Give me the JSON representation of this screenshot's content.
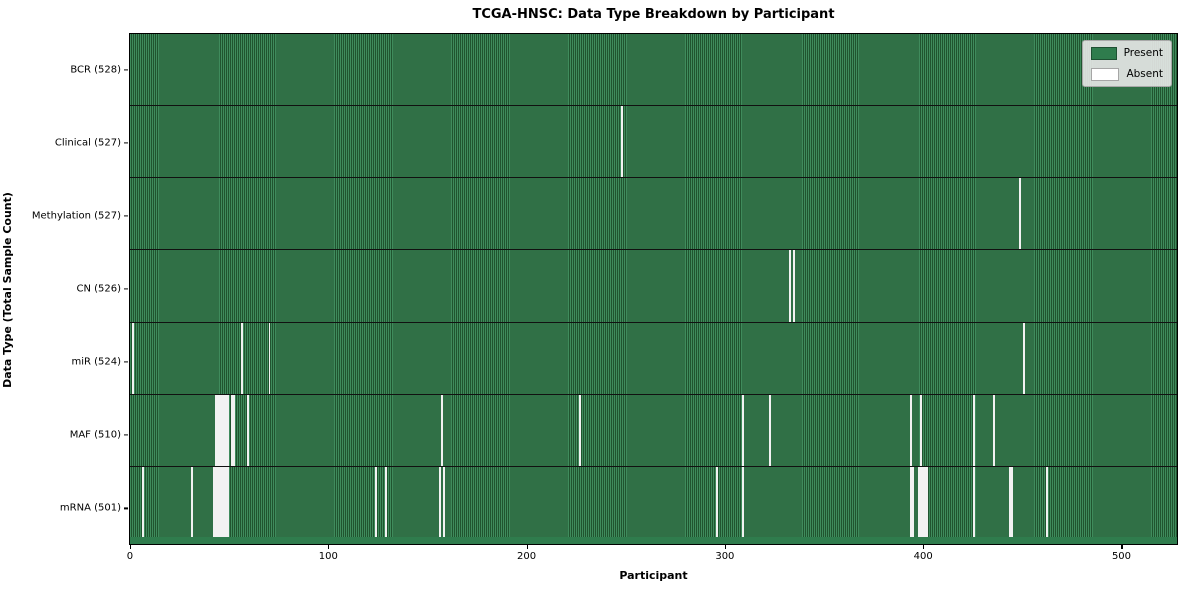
{
  "title": "TCGA-HNSC: Data Type Breakdown by Participant",
  "xlabel": "Participant",
  "ylabel": "Data Type (Total Sample Count)",
  "legend": {
    "present_label": "Present",
    "absent_label": "Absent"
  },
  "colors": {
    "present_green": "#2f7c4d",
    "present_stripe_light": "#3f8b5c",
    "present_stripe_dark": "#20542f",
    "absent_white": "#f2f2f2",
    "legend_bg": "#e8e8e8"
  },
  "chart_data": {
    "type": "heatmap",
    "title": "TCGA-HNSC: Data Type Breakdown by Participant",
    "xlabel": "Participant",
    "ylabel": "Data Type (Total Sample Count)",
    "n_participants": 528,
    "x_axis_range": [
      0,
      528
    ],
    "x_ticks": [
      0,
      100,
      200,
      300,
      400,
      500
    ],
    "grid": false,
    "legend_position": "upper right",
    "legend_entries": [
      "Present",
      "Absent"
    ],
    "rows": [
      {
        "name": "BCR",
        "label": "BCR (528)",
        "total": 528,
        "absent_participants": []
      },
      {
        "name": "Clinical",
        "label": "Clinical (527)",
        "total": 527,
        "absent_participants": [
          248
        ]
      },
      {
        "name": "Methylation",
        "label": "Methylation (527)",
        "total": 527,
        "absent_participants": [
          449
        ]
      },
      {
        "name": "CN",
        "label": "CN (526)",
        "total": 526,
        "absent_participants": [
          333,
          335
        ]
      },
      {
        "name": "miR",
        "label": "miR (524)",
        "total": 524,
        "absent_participants": [
          1,
          56,
          70,
          451
        ]
      },
      {
        "name": "MAF",
        "label": "MAF (510)",
        "total": 510,
        "absent_participants": [
          43,
          44,
          45,
          46,
          47,
          48,
          49,
          51,
          52,
          59,
          157,
          227,
          309,
          323,
          394,
          399,
          426,
          436
        ]
      },
      {
        "name": "mRNA",
        "label": "mRNA (501)",
        "total": 501,
        "absent_participants": [
          6,
          31,
          42,
          43,
          44,
          45,
          46,
          47,
          48,
          49,
          124,
          129,
          156,
          158,
          296,
          309,
          394,
          395,
          398,
          399,
          400,
          401,
          402,
          426,
          444,
          445,
          463
        ]
      }
    ]
  }
}
